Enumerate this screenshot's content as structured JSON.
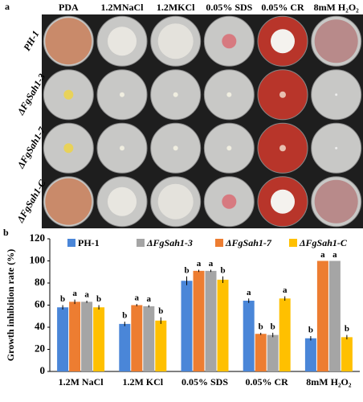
{
  "panel_a": {
    "label": "a",
    "columns": [
      "PDA",
      "1.2MNaCl",
      "1.2MKCl",
      "0.05% SDS",
      "0.05% CR",
      "8mM H₂O₂"
    ],
    "rows": [
      "PH-1",
      "ΔFgSah1-3",
      "ΔFgSah1-7",
      "ΔFgSah1-C"
    ]
  },
  "chart_data": {
    "type": "bar",
    "label": "b",
    "y_label": "Growth inhibition rate (%)",
    "categories": [
      "1.2M NaCl",
      "1.2M KCl",
      "0.05% SDS",
      "0.05% CR",
      "8mM H₂O₂"
    ],
    "ylim": [
      0,
      120
    ],
    "yticks": [
      0,
      20,
      40,
      60,
      80,
      100,
      120
    ],
    "series": [
      {
        "name": "PH-1",
        "color": "#4a86d8",
        "values": [
          58,
          43,
          82,
          64,
          30
        ],
        "errors": [
          2,
          2,
          4,
          2,
          2
        ],
        "letters": [
          "b",
          "b",
          "b",
          "a",
          "b"
        ]
      },
      {
        "name": "ΔFgSah1-3",
        "color": "#a5a5a5",
        "values": [
          63,
          59,
          91,
          33,
          100
        ],
        "errors": [
          1,
          1,
          1,
          2,
          0
        ],
        "letters": [
          "a",
          "a",
          "a",
          "b",
          "a"
        ]
      },
      {
        "name": "ΔFgSah1-7",
        "color": "#ed7d31",
        "values": [
          63,
          60,
          91,
          34,
          100
        ],
        "errors": [
          2,
          1,
          1,
          1,
          0
        ],
        "letters": [
          "a",
          "a",
          "a",
          "b",
          "a"
        ]
      },
      {
        "name": "ΔFgSah1-C",
        "color": "#ffc000",
        "values": [
          58,
          46,
          83,
          66,
          31
        ],
        "errors": [
          2,
          3,
          3,
          2,
          2
        ],
        "letters": [
          "b",
          "b",
          "b",
          "a",
          "b"
        ]
      }
    ]
  }
}
